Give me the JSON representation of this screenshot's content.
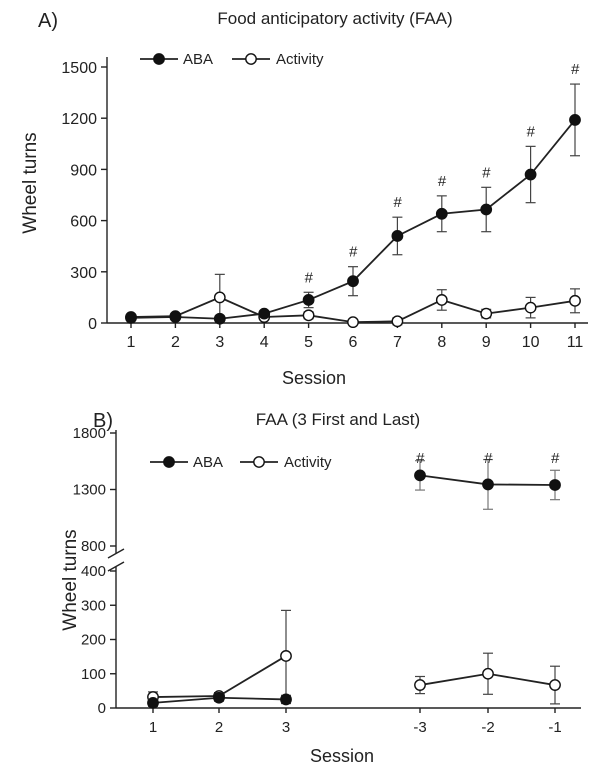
{
  "chart_data": [
    {
      "type": "line",
      "panel_label": "A)",
      "title": "Food anticipatory activity (FAA)",
      "xlabel": "Session",
      "ylabel": "Wheel turns",
      "categories": [
        "1",
        "2",
        "3",
        "4",
        "5",
        "6",
        "7",
        "8",
        "9",
        "10",
        "11"
      ],
      "yticks": [
        "0",
        "300",
        "600",
        "900",
        "1200",
        "1500"
      ],
      "ylim": [
        0,
        1500
      ],
      "legend_position": "top-left",
      "series": [
        {
          "name": "ABA",
          "marker": "filled",
          "values": [
            30,
            35,
            25,
            55,
            135,
            245,
            510,
            640,
            665,
            870,
            1190
          ],
          "errors": [
            15,
            15,
            15,
            15,
            45,
            85,
            110,
            105,
            130,
            165,
            210
          ]
        },
        {
          "name": "Activity",
          "marker": "open",
          "values": [
            35,
            40,
            150,
            35,
            45,
            5,
            10,
            135,
            55,
            90,
            130
          ],
          "errors": [
            15,
            15,
            135,
            15,
            20,
            5,
            20,
            60,
            25,
            60,
            70
          ]
        }
      ],
      "significance_symbol": "#",
      "significant_categories": [
        "5",
        "6",
        "7",
        "8",
        "9",
        "10",
        "11"
      ]
    },
    {
      "type": "line",
      "panel_label": "B)",
      "title": "FAA (3 First and Last)",
      "xlabel": "Session",
      "ylabel": "Wheel turns",
      "categories": [
        "1",
        "2",
        "3",
        "-3",
        "-2",
        "-1"
      ],
      "yticks": [
        "0",
        "100",
        "200",
        "300",
        "400",
        "800",
        "1300",
        "1800"
      ],
      "axis_break": [
        400,
        800
      ],
      "legend_position": "top-left",
      "series": [
        {
          "name": "ABA",
          "marker": "filled",
          "values": [
            15,
            30,
            25,
            1425,
            1345,
            1340
          ],
          "errors": [
            10,
            10,
            12,
            130,
            220,
            130
          ]
        },
        {
          "name": "Activity",
          "marker": "open",
          "values": [
            32,
            35,
            152,
            67,
            100,
            67
          ],
          "errors": [
            15,
            10,
            133,
            25,
            60,
            55
          ]
        }
      ],
      "significance_symbol": "#",
      "significant_categories": [
        "-3",
        "-2",
        "-1"
      ]
    }
  ]
}
